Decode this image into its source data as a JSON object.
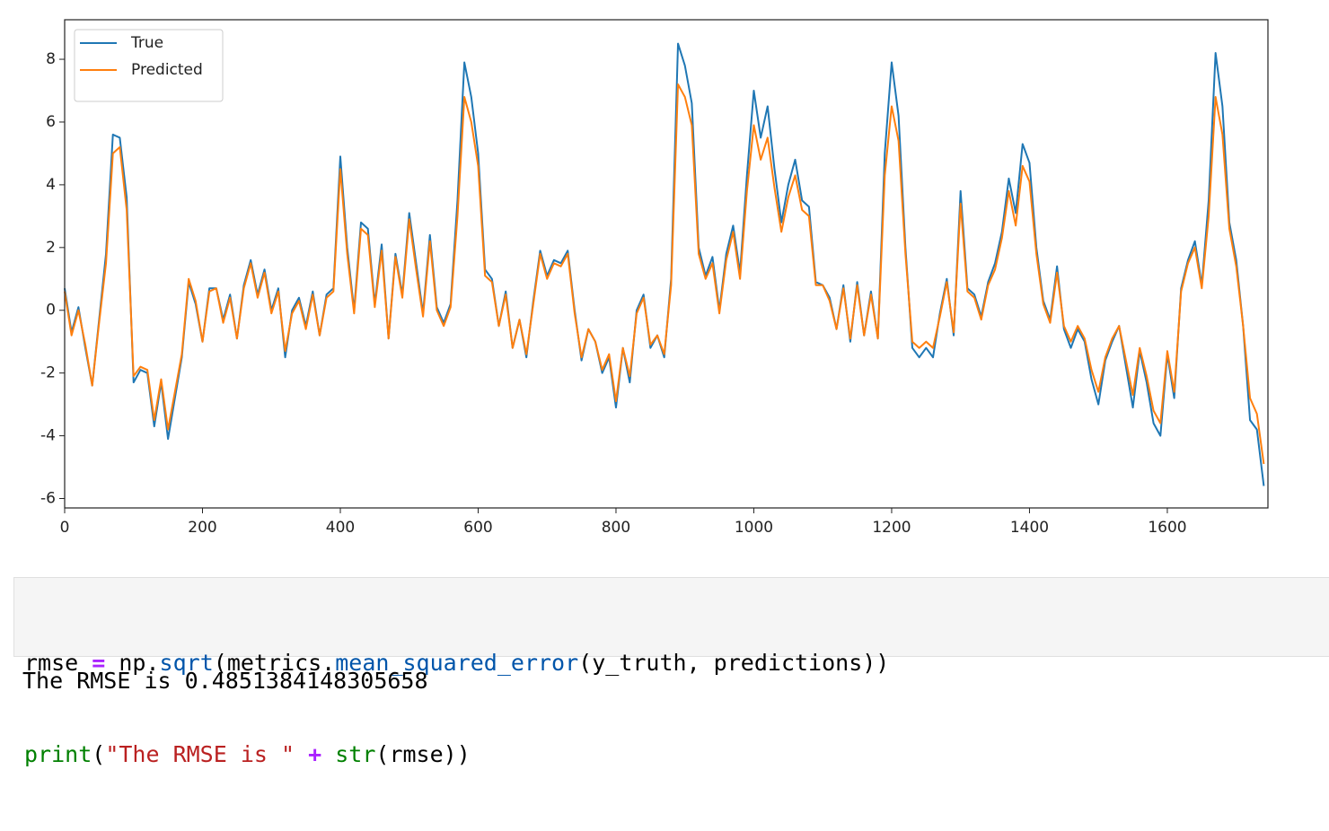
{
  "chart_data": {
    "type": "line",
    "x": [
      0,
      10,
      20,
      30,
      40,
      50,
      60,
      70,
      80,
      90,
      100,
      110,
      120,
      130,
      140,
      150,
      160,
      170,
      180,
      190,
      200,
      210,
      220,
      230,
      240,
      250,
      260,
      270,
      280,
      290,
      300,
      310,
      320,
      330,
      340,
      350,
      360,
      370,
      380,
      390,
      400,
      410,
      420,
      430,
      440,
      450,
      460,
      470,
      480,
      490,
      500,
      510,
      520,
      530,
      540,
      550,
      560,
      570,
      580,
      590,
      600,
      610,
      620,
      630,
      640,
      650,
      660,
      670,
      680,
      690,
      700,
      710,
      720,
      730,
      740,
      750,
      760,
      770,
      780,
      790,
      800,
      810,
      820,
      830,
      840,
      850,
      860,
      870,
      880,
      890,
      900,
      910,
      920,
      930,
      940,
      950,
      960,
      970,
      980,
      990,
      1000,
      1010,
      1020,
      1030,
      1040,
      1050,
      1060,
      1070,
      1080,
      1090,
      1100,
      1110,
      1120,
      1130,
      1140,
      1150,
      1160,
      1170,
      1180,
      1190,
      1200,
      1210,
      1220,
      1230,
      1240,
      1250,
      1260,
      1270,
      1280,
      1290,
      1300,
      1310,
      1320,
      1330,
      1340,
      1350,
      1360,
      1370,
      1380,
      1390,
      1400,
      1410,
      1420,
      1430,
      1440,
      1450,
      1460,
      1470,
      1480,
      1490,
      1500,
      1510,
      1520,
      1530,
      1540,
      1550,
      1560,
      1570,
      1580,
      1590,
      1600,
      1610,
      1620,
      1630,
      1640,
      1650,
      1660,
      1670,
      1680,
      1690,
      1700,
      1710,
      1720,
      1730,
      1740
    ],
    "series": [
      {
        "name": "True",
        "color": "#1f77b4",
        "values": [
          0.7,
          -0.7,
          0.1,
          -1.2,
          -2.4,
          -0.3,
          1.8,
          5.6,
          5.5,
          3.6,
          -2.3,
          -1.9,
          -2.0,
          -3.7,
          -2.3,
          -4.1,
          -2.8,
          -1.5,
          0.9,
          0.2,
          -1.0,
          0.7,
          0.7,
          -0.3,
          0.5,
          -0.9,
          0.8,
          1.6,
          0.5,
          1.3,
          0.0,
          0.7,
          -1.5,
          0.0,
          0.4,
          -0.5,
          0.6,
          -0.8,
          0.5,
          0.7,
          4.9,
          2.0,
          0.0,
          2.8,
          2.6,
          0.2,
          2.1,
          -0.9,
          1.8,
          0.5,
          3.1,
          1.5,
          -0.1,
          2.4,
          0.1,
          -0.4,
          0.2,
          3.5,
          7.9,
          6.8,
          5.0,
          1.3,
          1.0,
          -0.5,
          0.6,
          -1.2,
          -0.3,
          -1.5,
          0.3,
          1.9,
          1.1,
          1.6,
          1.5,
          1.9,
          0.0,
          -1.6,
          -0.6,
          -1.0,
          -2.0,
          -1.5,
          -3.1,
          -1.2,
          -2.3,
          0.0,
          0.5,
          -1.2,
          -0.8,
          -1.5,
          1.0,
          8.5,
          7.8,
          6.6,
          2.0,
          1.1,
          1.7,
          0.0,
          1.8,
          2.7,
          1.2,
          4.3,
          7.0,
          5.5,
          6.5,
          4.5,
          2.8,
          4.0,
          4.8,
          3.5,
          3.3,
          0.9,
          0.8,
          0.4,
          -0.6,
          0.8,
          -1.0,
          0.9,
          -0.8,
          0.6,
          -0.9,
          5.0,
          7.9,
          6.2,
          2.0,
          -1.2,
          -1.5,
          -1.2,
          -1.5,
          -0.1,
          1.0,
          -0.8,
          3.8,
          0.7,
          0.5,
          -0.2,
          0.9,
          1.5,
          2.5,
          4.2,
          3.1,
          5.3,
          4.7,
          2.0,
          0.3,
          -0.3,
          1.4,
          -0.6,
          -1.2,
          -0.6,
          -1.0,
          -2.2,
          -3.0,
          -1.6,
          -1.0,
          -0.5,
          -1.8,
          -3.1,
          -1.3,
          -2.3,
          -3.6,
          -4.0,
          -1.4,
          -2.8,
          0.7,
          1.6,
          2.2,
          0.8,
          3.5,
          8.2,
          6.5,
          2.8,
          1.6,
          -0.5,
          -3.5,
          -3.8,
          -5.6
        ]
      },
      {
        "name": "Predicted",
        "color": "#ff7f0e",
        "values": [
          0.6,
          -0.8,
          0.0,
          -1.1,
          -2.4,
          -0.4,
          1.5,
          5.0,
          5.2,
          3.2,
          -2.1,
          -1.8,
          -1.9,
          -3.5,
          -2.2,
          -3.8,
          -2.6,
          -1.4,
          1.0,
          0.3,
          -1.0,
          0.6,
          0.7,
          -0.4,
          0.4,
          -0.9,
          0.7,
          1.5,
          0.4,
          1.2,
          -0.1,
          0.6,
          -1.3,
          -0.1,
          0.3,
          -0.6,
          0.5,
          -0.8,
          0.4,
          0.6,
          4.5,
          1.8,
          -0.1,
          2.6,
          2.4,
          0.1,
          1.9,
          -0.9,
          1.7,
          0.4,
          2.9,
          1.3,
          -0.2,
          2.2,
          0.0,
          -0.5,
          0.1,
          3.0,
          6.8,
          6.0,
          4.6,
          1.1,
          0.9,
          -0.5,
          0.5,
          -1.2,
          -0.3,
          -1.4,
          0.2,
          1.8,
          1.0,
          1.5,
          1.4,
          1.8,
          -0.1,
          -1.5,
          -0.6,
          -1.0,
          -1.9,
          -1.4,
          -2.9,
          -1.2,
          -2.1,
          -0.1,
          0.4,
          -1.1,
          -0.8,
          -1.4,
          0.8,
          7.2,
          6.8,
          5.9,
          1.8,
          1.0,
          1.5,
          -0.1,
          1.6,
          2.5,
          1.0,
          3.8,
          5.9,
          4.8,
          5.5,
          3.9,
          2.5,
          3.6,
          4.3,
          3.2,
          3.0,
          0.8,
          0.8,
          0.3,
          -0.6,
          0.7,
          -0.9,
          0.8,
          -0.8,
          0.5,
          -0.9,
          4.3,
          6.5,
          5.4,
          1.8,
          -1.0,
          -1.2,
          -1.0,
          -1.2,
          -0.2,
          0.9,
          -0.7,
          3.4,
          0.6,
          0.4,
          -0.3,
          0.8,
          1.3,
          2.3,
          3.8,
          2.7,
          4.6,
          4.1,
          1.8,
          0.2,
          -0.4,
          1.2,
          -0.5,
          -1.0,
          -0.5,
          -0.9,
          -1.9,
          -2.6,
          -1.5,
          -0.9,
          -0.5,
          -1.6,
          -2.7,
          -1.2,
          -2.1,
          -3.2,
          -3.6,
          -1.3,
          -2.6,
          0.6,
          1.5,
          2.0,
          0.7,
          3.0,
          6.8,
          5.6,
          2.6,
          1.4,
          -0.5,
          -2.8,
          -3.3,
          -4.9
        ]
      }
    ],
    "xlim": [
      0,
      1746
    ],
    "ylim": [
      -6.3,
      9.26
    ],
    "xticks": [
      0,
      200,
      400,
      600,
      800,
      1000,
      1200,
      1400,
      1600
    ],
    "yticks": [
      -6,
      -4,
      -2,
      0,
      2,
      4,
      6,
      8
    ],
    "legend": "upper left"
  },
  "code_cell": {
    "lines": [
      [
        "rmse ",
        "=",
        " np.",
        "sqrt",
        "(metrics.",
        "mean_squared_error",
        "(y_truth, predictions))"
      ],
      [
        "print",
        "(",
        "\"The RMSE is \"",
        " ",
        "+",
        " ",
        "str",
        "(rmse))"
      ]
    ]
  },
  "output": "The RMSE is 0.4851384148305658"
}
